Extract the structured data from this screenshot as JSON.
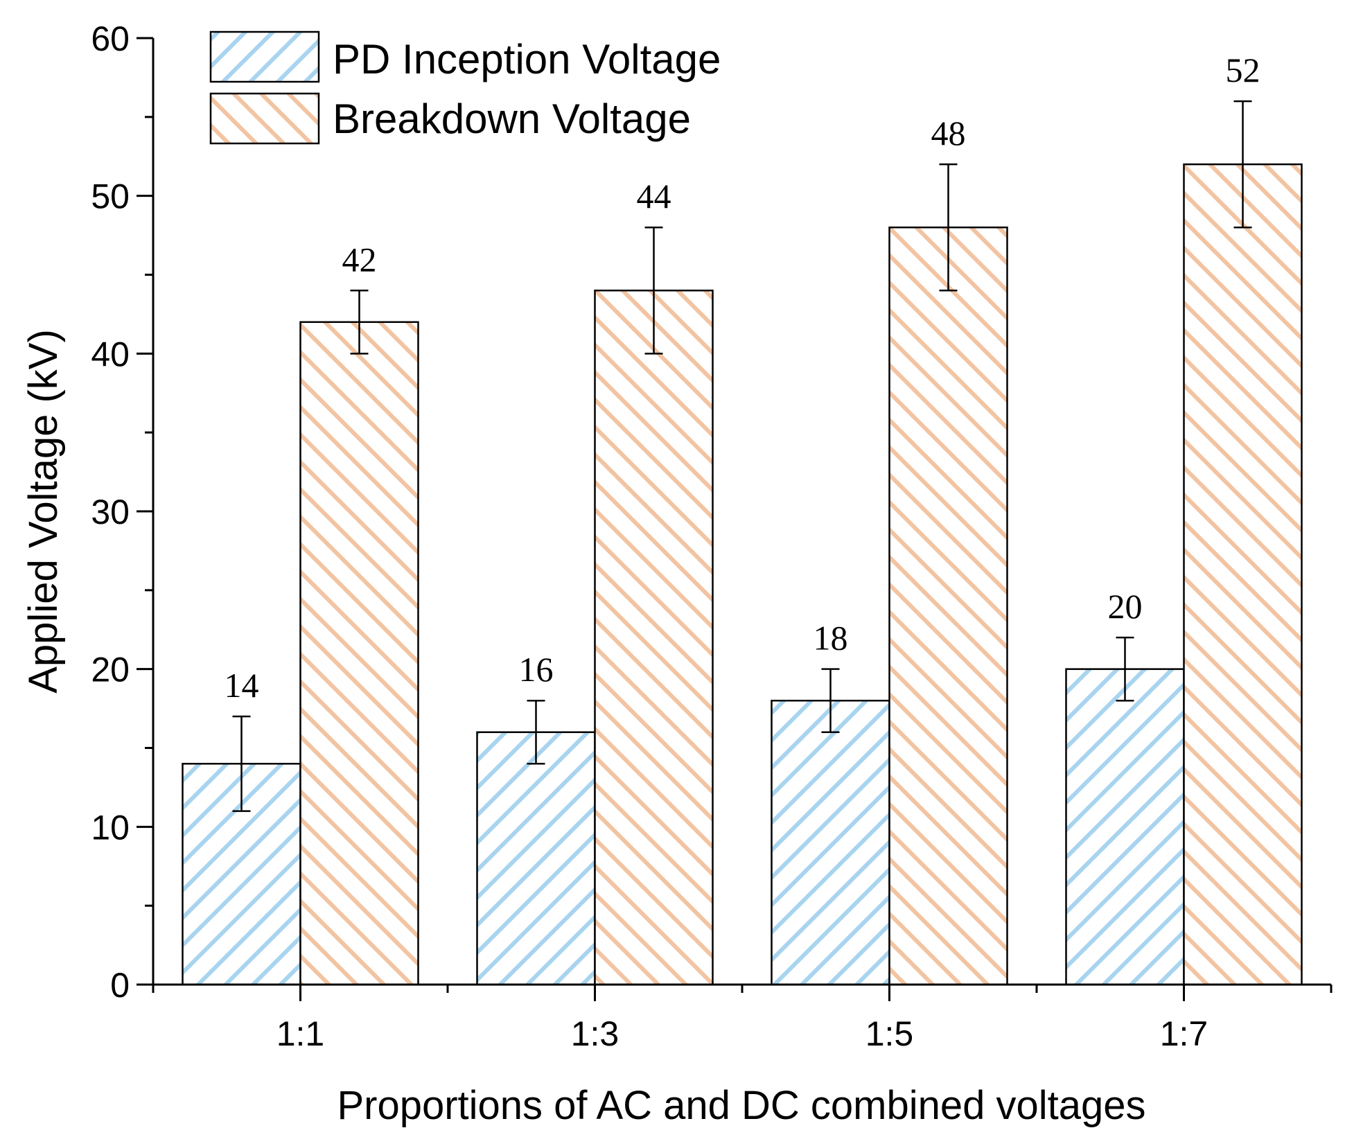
{
  "chart_data": {
    "type": "bar",
    "title": "",
    "xlabel": "Proportions of AC and DC combined voltages",
    "ylabel": "Applied Voltage (kV)",
    "categories": [
      "1:1",
      "1:3",
      "1:5",
      "1:7"
    ],
    "ylim": [
      0,
      60
    ],
    "yticks": [
      "0",
      "10",
      "20",
      "30",
      "40",
      "50",
      "60"
    ],
    "legend_position": "top-left",
    "grid": false,
    "series": [
      {
        "name": "PD Inception Voltage",
        "values": [
          14,
          16,
          18,
          20
        ],
        "errors": [
          3,
          2,
          2,
          2
        ],
        "labels": [
          "14",
          "16",
          "18",
          "20"
        ],
        "color": "#a8d4ef",
        "pattern": "diagonal-forward"
      },
      {
        "name": "Breakdown Voltage",
        "values": [
          42,
          44,
          48,
          52
        ],
        "errors": [
          2,
          4,
          4,
          4
        ],
        "labels": [
          "42",
          "44",
          "48",
          "52"
        ],
        "color": "#f2c4a2",
        "pattern": "diagonal-backward"
      }
    ]
  }
}
